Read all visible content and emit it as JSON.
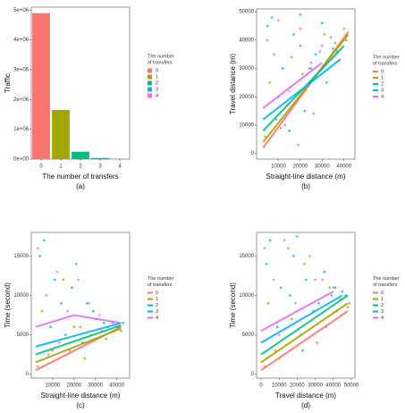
{
  "chart_data": [
    {
      "type": "bar",
      "caption": "(a)",
      "x_label": "The number of transfers",
      "y_label": "Traffic",
      "legend_title": [
        "The number",
        "of transfers"
      ],
      "categories": [
        "0",
        "1",
        "2",
        "3",
        "4"
      ],
      "colors": [
        "#F8766D",
        "#A3A500",
        "#00BF7D",
        "#00B0F6",
        "#E76BF3"
      ],
      "values": [
        4900000,
        1650000,
        250000,
        40000,
        5000
      ],
      "ylim": [
        0,
        5100000
      ],
      "yticks": [
        {
          "value": 0,
          "label": "0e+00"
        },
        {
          "value": 1000000,
          "label": "1e+06"
        },
        {
          "value": 2000000,
          "label": "2e+06"
        },
        {
          "value": 3000000,
          "label": "3e+06"
        },
        {
          "value": 4000000,
          "label": "4e+06"
        },
        {
          "value": 5000000,
          "label": "5e+06"
        }
      ]
    },
    {
      "type": "scatter",
      "caption": "(b)",
      "x_label": "Straight-line distance (m)",
      "y_label": "Travel distance (m)",
      "legend_title": [
        "The number",
        "of transfers"
      ],
      "xlim": [
        0,
        45000
      ],
      "xticks": [
        10000,
        20000,
        30000,
        40000
      ],
      "ylim": [
        -2000,
        51000
      ],
      "yticks": [
        0,
        10000,
        20000,
        30000,
        40000,
        50000
      ],
      "series": [
        {
          "name": "0",
          "color": "#F8766D",
          "x": [
            4000,
            9000,
            14000,
            19000,
            24000,
            29000,
            34000,
            40000
          ],
          "values": [
            6000,
            12000,
            17000,
            3000,
            30000,
            36000,
            41000,
            44000
          ],
          "trend_x": [
            3000,
            42000
          ],
          "trend_values": [
            2000,
            43000
          ]
        },
        {
          "name": "1",
          "color": "#A3A500",
          "x": [
            6000,
            11000,
            16000,
            21000,
            26000,
            31000,
            36000,
            41000
          ],
          "values": [
            25000,
            9000,
            34000,
            28000,
            14000,
            42000,
            39000,
            40000
          ],
          "trend_x": [
            3000,
            42000
          ],
          "trend_values": [
            4000,
            42000
          ]
        },
        {
          "name": "2",
          "color": "#00BF7D",
          "x": [
            5000,
            10000,
            15000,
            20000,
            25000,
            30000,
            35000,
            38000
          ],
          "values": [
            45000,
            20000,
            8000,
            38000,
            30000,
            46000,
            37000,
            33000
          ],
          "trend_x": [
            3000,
            40000
          ],
          "trend_values": [
            8000,
            38000
          ]
        },
        {
          "name": "3",
          "color": "#00B0F6",
          "x": [
            7000,
            12000,
            17000,
            22000,
            27000,
            32000,
            37000,
            20000
          ],
          "values": [
            48000,
            30000,
            42000,
            15000,
            35000,
            25000,
            36000,
            49000
          ],
          "trend_x": [
            3000,
            38000
          ],
          "trend_values": [
            12000,
            33000
          ]
        },
        {
          "name": "4",
          "color": "#E76BF3",
          "x": [
            5000,
            10000,
            15000,
            20000,
            25000,
            30000,
            13000,
            8000
          ],
          "values": [
            40000,
            47000,
            22000,
            44000,
            32000,
            38000,
            10000,
            35000
          ],
          "trend_x": [
            3000,
            30000
          ],
          "trend_values": [
            16000,
            32000
          ]
        }
      ]
    },
    {
      "type": "scatter",
      "caption": "(c)",
      "x_label": "Straight-line distance (m)",
      "y_label": "Time (second)",
      "legend_title": [
        "The number",
        "of transfers"
      ],
      "xlim": [
        0,
        46000
      ],
      "xticks": [
        10000,
        20000,
        30000,
        40000
      ],
      "ylim": [
        -500,
        18000
      ],
      "yticks": [
        0,
        5000,
        10000,
        15000
      ],
      "series": [
        {
          "name": "0",
          "color": "#F8766D",
          "x": [
            3000,
            8000,
            13000,
            18000,
            23000,
            28000,
            33000,
            40000
          ],
          "values": [
            1000,
            2500,
            4000,
            3000,
            6000,
            5000,
            5500,
            6000
          ],
          "trend_x": [
            2000,
            42000
          ],
          "trend_values": [
            500,
            6000
          ]
        },
        {
          "name": "1",
          "color": "#A3A500",
          "x": [
            5000,
            10000,
            15000,
            20000,
            25000,
            30000,
            35000,
            42000
          ],
          "values": [
            8000,
            3000,
            12000,
            6000,
            2000,
            7000,
            4500,
            5500
          ],
          "trend_x": [
            2000,
            42000
          ],
          "trend_values": [
            1500,
            5800
          ]
        },
        {
          "name": "2",
          "color": "#00BF7D",
          "x": [
            4000,
            9000,
            14000,
            19000,
            24000,
            29000,
            34000,
            41000
          ],
          "values": [
            15000,
            6000,
            9000,
            11000,
            4000,
            8000,
            6500,
            6000
          ],
          "trend_x": [
            2000,
            42000
          ],
          "trend_values": [
            2500,
            6200
          ]
        },
        {
          "name": "3",
          "color": "#00B0F6",
          "x": [
            6000,
            11000,
            16000,
            21000,
            26000,
            31000,
            36000,
            43000
          ],
          "values": [
            17000,
            12000,
            5000,
            14000,
            9000,
            7000,
            6000,
            6500
          ],
          "trend_x": [
            2000,
            42000
          ],
          "trend_values": [
            3500,
            6500
          ]
        },
        {
          "name": "4",
          "color": "#E76BF3",
          "x": [
            3000,
            7000,
            12000,
            17000,
            22000,
            27000,
            32000,
            38000
          ],
          "values": [
            16000,
            10000,
            13000,
            8000,
            12000,
            9000,
            7500,
            6500
          ],
          "trend_x": [
            2000,
            20000,
            42000
          ],
          "trend_values": [
            6000,
            7500,
            6500
          ]
        }
      ]
    },
    {
      "type": "scatter",
      "caption": "(d)",
      "x_label": "Travel distance (m)",
      "y_label": "Time (second)",
      "legend_title": [
        "The number",
        "of transfers"
      ],
      "xlim": [
        -2500,
        52000
      ],
      "xticks": [
        0,
        10000,
        20000,
        30000,
        40000,
        50000
      ],
      "ylim": [
        -500,
        18000
      ],
      "yticks": [
        0,
        5000,
        10000,
        15000
      ],
      "series": [
        {
          "name": "0",
          "color": "#F8766D",
          "x": [
            2000,
            8000,
            15000,
            22000,
            30000,
            36000,
            42000,
            48000
          ],
          "values": [
            1000,
            3000,
            16000,
            5000,
            12000,
            6000,
            8000,
            8500
          ],
          "trend_x": [
            0,
            48000
          ],
          "trend_values": [
            500,
            8000
          ]
        },
        {
          "name": "1",
          "color": "#A3A500",
          "x": [
            4000,
            10000,
            17000,
            24000,
            31000,
            38000,
            44000,
            49000
          ],
          "values": [
            9000,
            2000,
            7000,
            14000,
            4000,
            11000,
            9500,
            9000
          ],
          "trend_x": [
            0,
            48000
          ],
          "trend_values": [
            1500,
            9000
          ]
        },
        {
          "name": "2",
          "color": "#00BF7D",
          "x": [
            3000,
            9000,
            16000,
            23000,
            29000,
            35000,
            41000,
            47000
          ],
          "values": [
            14000,
            6000,
            10000,
            3000,
            8000,
            13000,
            11000,
            10000
          ],
          "trend_x": [
            0,
            48000
          ],
          "trend_values": [
            2500,
            10000
          ]
        },
        {
          "name": "3",
          "color": "#00B0F6",
          "x": [
            5000,
            11000,
            18000,
            25000,
            32000,
            39000,
            45000,
            20000
          ],
          "values": [
            17000,
            11000,
            15000,
            12000,
            9000,
            10000,
            10500,
            17500
          ],
          "trend_x": [
            0,
            45000
          ],
          "trend_values": [
            4000,
            10000
          ]
        },
        {
          "name": "4",
          "color": "#E76BF3",
          "x": [
            2000,
            7000,
            13000,
            19000,
            27000,
            34000,
            40000,
            10000
          ],
          "values": [
            16000,
            12000,
            17000,
            9000,
            15000,
            12000,
            11000,
            5000
          ],
          "trend_x": [
            0,
            40000
          ],
          "trend_values": [
            5500,
            10500
          ]
        }
      ]
    }
  ]
}
